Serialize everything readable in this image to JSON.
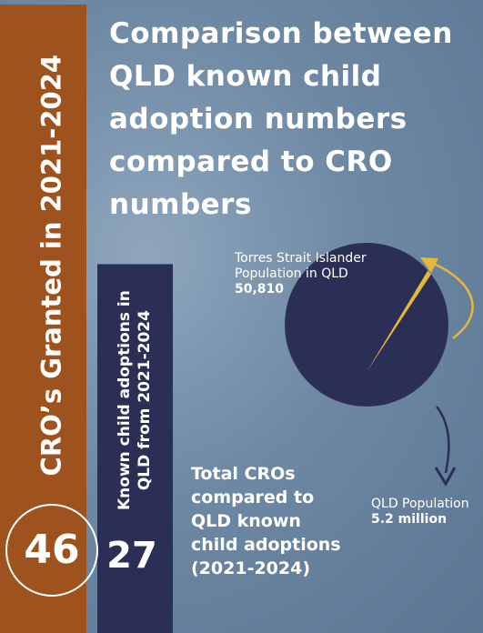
{
  "title": "Comparison between QLD known child adoption numbers compared to CRO numbers",
  "chart_data": [
    {
      "type": "bar",
      "categories": [
        "CRO’s Granted in 2021-2024",
        "Known child adoptions in QLD from 2021-2024"
      ],
      "values": [
        46,
        27
      ],
      "colors": [
        "#9e521e",
        "#2c2f55"
      ],
      "annotation": "Total CROs compared to QLD known child adoptions (2021-2024)"
    },
    {
      "type": "pie",
      "labels": [
        "Torres Strait Islander Population in QLD",
        "QLD Population"
      ],
      "values": [
        50810,
        5200000
      ],
      "value_labels": [
        "50,810",
        "5.2 million"
      ],
      "colors": [
        "#e3b93a",
        "#2c2f55"
      ]
    }
  ]
}
